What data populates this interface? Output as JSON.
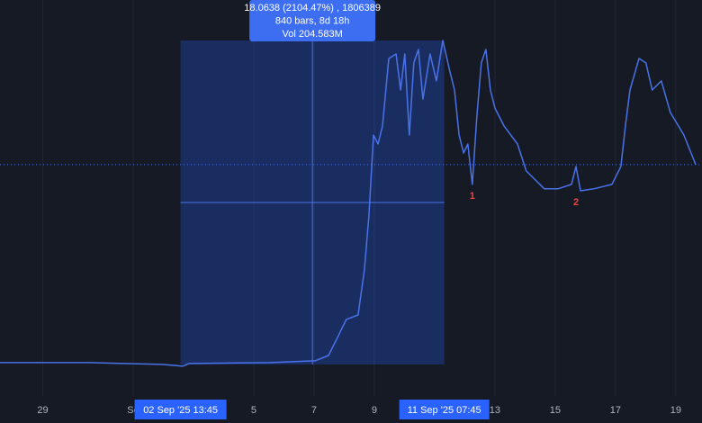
{
  "chart_data": {
    "type": "line",
    "x": [
      -4.42,
      -1.43,
      0.96,
      1.64,
      1.85,
      4.54,
      6.03,
      6.48,
      6.78,
      7.07,
      7.46,
      7.67,
      7.82,
      7.97,
      8.12,
      8.27,
      8.48,
      8.72,
      8.87,
      9.01,
      9.16,
      9.31,
      9.46,
      9.61,
      9.85,
      10.06,
      10.27,
      10.51,
      10.66,
      10.81,
      10.96,
      11.1,
      11.25,
      11.4,
      11.55,
      11.7,
      11.85,
      12.0,
      12.3,
      12.75,
      13.04,
      13.34,
      13.64,
      14.09,
      14.54,
      14.69,
      14.84,
      15.28,
      15.88,
      16.18,
      16.33,
      16.48,
      16.78,
      17.01,
      17.22,
      17.52,
      17.82,
      18.27,
      18.66
    ],
    "series": [
      {
        "color": "#4a72e8",
        "values": [
          0.96,
          0.96,
          0.86,
          0.76,
          0.91,
          0.96,
          1.06,
          1.36,
          2.37,
          3.37,
          3.62,
          6.13,
          9.14,
          13.65,
          13.15,
          14.16,
          17.92,
          18.17,
          16.16,
          18.17,
          13.65,
          17.67,
          18.42,
          15.66,
          18.17,
          16.67,
          18.92,
          17.17,
          16.16,
          13.65,
          12.65,
          13.15,
          10.9,
          14.66,
          17.67,
          18.42,
          16.16,
          15.16,
          14.16,
          13.15,
          11.65,
          11.15,
          10.65,
          10.65,
          10.9,
          11.9,
          10.54,
          10.65,
          10.9,
          11.9,
          14.16,
          16.16,
          17.92,
          17.67,
          16.16,
          16.67,
          14.91,
          13.65,
          12.0
        ]
      }
    ],
    "xlim": [
      -4.42,
      18.87
    ],
    "ylim": [
      -0.9,
      21.18
    ],
    "xticks": [
      {
        "value": -3,
        "label": "29"
      },
      {
        "value": 0,
        "label": "Se"
      },
      {
        "value": 4,
        "label": "5"
      },
      {
        "value": 6,
        "label": "7"
      },
      {
        "value": 8,
        "label": "9"
      },
      {
        "value": 12,
        "label": "13"
      },
      {
        "value": 14,
        "label": "15"
      },
      {
        "value": 16,
        "label": "17"
      },
      {
        "value": 18,
        "label": "19"
      }
    ],
    "measure": {
      "x": [
        1.57,
        10.32
      ],
      "y": [
        0.86,
        18.92
      ],
      "start_label": {
        "value": 1.57,
        "label": "02 Sep '25   13:45"
      },
      "end_label": {
        "value": 10.32,
        "label": "11 Sep '25   07:45"
      },
      "tooltip": [
        "18.0638 (2104.47%) , 1806389",
        "840 bars, 8d 18h",
        "Vol 204.583M"
      ]
    },
    "annotations": [
      {
        "text": "1",
        "x": 11.25,
        "y": 10.9
      },
      {
        "text": "2",
        "x": 14.69,
        "y": 10.54
      }
    ]
  }
}
